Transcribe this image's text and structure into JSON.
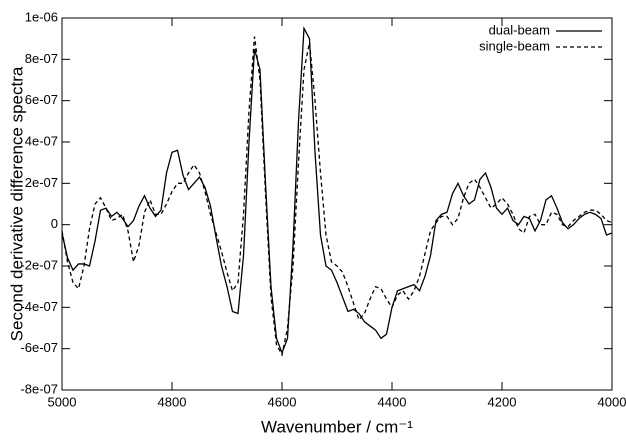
{
  "chart_data": {
    "type": "line",
    "x_label": "Wavenumber / cm⁻¹",
    "y_label": "Second derivative difference spectra",
    "xlim": [
      5000,
      4000
    ],
    "xticks": [
      5000,
      4800,
      4600,
      4400,
      4200,
      4000
    ],
    "ylim": [
      -8e-07,
      1e-06
    ],
    "yticks": [
      {
        "value": -8e-07,
        "label": "-8e-07"
      },
      {
        "value": -6e-07,
        "label": "-6e-07"
      },
      {
        "value": -4e-07,
        "label": "-4e-07"
      },
      {
        "value": -2e-07,
        "label": "-2e-07"
      },
      0,
      {
        "value": 2e-07,
        "label": "2e-07"
      },
      {
        "value": 4e-07,
        "label": "4e-07"
      },
      {
        "value": 6e-07,
        "label": "6e-07"
      },
      {
        "value": 8e-07,
        "label": "8e-07"
      },
      {
        "value": 1e-06,
        "label": "1e-06"
      }
    ],
    "legend": "top-right",
    "x": [
      5000,
      4990,
      4980,
      4970,
      4960,
      4950,
      4940,
      4930,
      4920,
      4910,
      4900,
      4890,
      4880,
      4870,
      4860,
      4850,
      4840,
      4830,
      4820,
      4810,
      4800,
      4790,
      4780,
      4770,
      4760,
      4750,
      4740,
      4730,
      4720,
      4710,
      4700,
      4690,
      4680,
      4670,
      4660,
      4650,
      4640,
      4630,
      4620,
      4610,
      4600,
      4590,
      4580,
      4570,
      4560,
      4550,
      4540,
      4530,
      4520,
      4510,
      4500,
      4490,
      4480,
      4470,
      4460,
      4450,
      4440,
      4430,
      4420,
      4410,
      4400,
      4390,
      4380,
      4370,
      4360,
      4350,
      4340,
      4330,
      4320,
      4310,
      4300,
      4290,
      4280,
      4270,
      4260,
      4250,
      4240,
      4230,
      4220,
      4210,
      4200,
      4190,
      4180,
      4170,
      4160,
      4150,
      4140,
      4130,
      4120,
      4110,
      4100,
      4090,
      4080,
      4070,
      4060,
      4050,
      4040,
      4030,
      4020,
      4010,
      4000
    ],
    "series": [
      {
        "name": "dual-beam",
        "color": "#000000",
        "dash": "solid",
        "values": [
          -4e-08,
          -1.6e-07,
          -2.2e-07,
          -1.9e-07,
          -1.9e-07,
          -2e-07,
          -8e-08,
          7e-08,
          8e-08,
          4e-08,
          6e-08,
          3e-08,
          -1e-08,
          2e-08,
          9e-08,
          1.4e-07,
          8e-08,
          4e-08,
          7e-08,
          2.5e-07,
          3.5e-07,
          3.6e-07,
          2.4e-07,
          1.7e-07,
          2e-07,
          2.3e-07,
          1.8e-07,
          9e-08,
          -6e-08,
          -2e-07,
          -3e-07,
          -4.2e-07,
          -4.3e-07,
          -1.5e-07,
          4e-07,
          8.5e-07,
          7.5e-07,
          2e-07,
          -3e-07,
          -5.5e-07,
          -6.2e-07,
          -5.5e-07,
          -1e-07,
          5e-07,
          9.5e-07,
          9e-07,
          3.5e-07,
          -5e-08,
          -2e-07,
          -2.2e-07,
          -2.8e-07,
          -3.5e-07,
          -4.2e-07,
          -4.1e-07,
          -4.3e-07,
          -4.7e-07,
          -4.9e-07,
          -5.1e-07,
          -5.5e-07,
          -5.3e-07,
          -4e-07,
          -3.2e-07,
          -3.1e-07,
          -3e-07,
          -2.9e-07,
          -3.2e-07,
          -2.5e-07,
          -1.5e-07,
          2e-08,
          5e-08,
          6e-08,
          1.5e-07,
          2e-07,
          1.4e-07,
          1e-07,
          1.2e-07,
          2.2e-07,
          2.5e-07,
          1.8e-07,
          8e-08,
          5e-08,
          8e-08,
          2e-08,
          0,
          4e-08,
          3e-08,
          -3e-08,
          2e-08,
          1.2e-07,
          1.4e-07,
          8e-08,
          1e-08,
          -2e-08,
          0,
          3e-08,
          5e-08,
          6e-08,
          5e-08,
          3e-08,
          -5e-08,
          -4e-08
        ]
      },
      {
        "name": "single-beam",
        "color": "#000000",
        "dash": "dashed",
        "values": [
          -3e-08,
          -1.8e-07,
          -2.8e-07,
          -3.1e-07,
          -2e-07,
          -2e-08,
          1e-07,
          1.3e-07,
          8e-08,
          2e-08,
          3e-08,
          5e-08,
          -3e-08,
          -1.8e-07,
          -1e-07,
          6e-08,
          1.2e-07,
          5e-08,
          5e-08,
          1e-07,
          1.6e-07,
          2e-07,
          2e-07,
          2.5e-07,
          2.9e-07,
          2.5e-07,
          1.6e-07,
          5e-08,
          -4e-08,
          -1.3e-07,
          -2.3e-07,
          -3.2e-07,
          -2.8e-07,
          5e-08,
          5.5e-07,
          9.1e-07,
          7e-07,
          1.5e-07,
          -3.5e-07,
          -5.8e-07,
          -6.3e-07,
          -5e-07,
          -2e-07,
          3e-07,
          7.5e-07,
          8.8e-07,
          6e-07,
          2.5e-07,
          -5e-08,
          -1.8e-07,
          -2e-07,
          -2.3e-07,
          -3e-07,
          -3.8e-07,
          -4.6e-07,
          -4.3e-07,
          -3.6e-07,
          -3e-07,
          -3.1e-07,
          -3.6e-07,
          -4e-07,
          -3.4e-07,
          -3.2e-07,
          -3.6e-07,
          -3.2e-07,
          -2.5e-07,
          -1.4e-07,
          -3e-08,
          1e-08,
          4e-08,
          4e-08,
          0,
          3e-08,
          1.3e-07,
          2e-07,
          2.2e-07,
          1.8e-07,
          1.3e-07,
          8e-08,
          1e-07,
          1.3e-07,
          1e-07,
          5e-08,
          -2e-08,
          -4e-08,
          4e-08,
          5e-08,
          0,
          0,
          6e-08,
          5e-08,
          0,
          -1e-08,
          2e-08,
          4e-08,
          6e-08,
          7e-08,
          7e-08,
          5e-08,
          2e-08,
          1e-08
        ]
      }
    ]
  }
}
